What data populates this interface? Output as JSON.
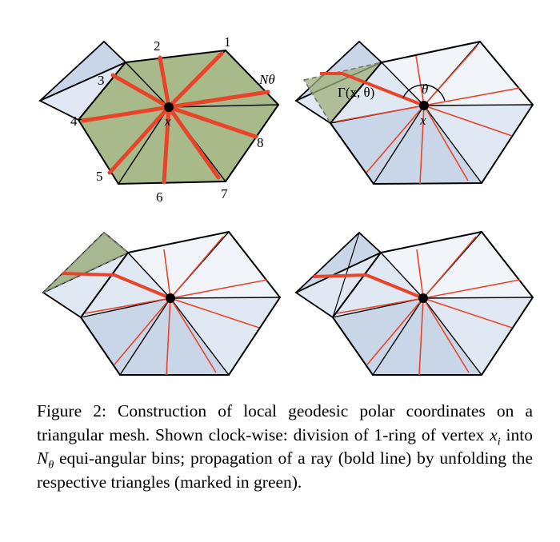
{
  "figure": {
    "bin_labels": [
      "1",
      "2",
      "3",
      "4",
      "5",
      "6",
      "7",
      "8",
      "Nθ"
    ],
    "vertex_label": "x",
    "ray_label": "Γ(x, θ)",
    "angle_label": "θ",
    "colors": {
      "ring_fill": "#a8b98a",
      "ring_fill_light": "#dfe8f3",
      "ring_fill_blue": "#c9d6e8",
      "unfold_fill": "#9fb07a",
      "ray": "#e8442a",
      "edge": "#000000"
    }
  },
  "caption": {
    "prefix": "Figure 2: Construction of local geodesic polar coordinates on a triangular mesh. Shown clock-wise: division of 1-ring of vertex ",
    "xi": "x",
    "xi_sub": "i",
    "middle": " into ",
    "ntheta": "N",
    "ntheta_sub": "θ",
    "suffix": " equi-angular bins; propagation of a ray (bold line) by unfolding the respective triangles (marked in green)."
  }
}
